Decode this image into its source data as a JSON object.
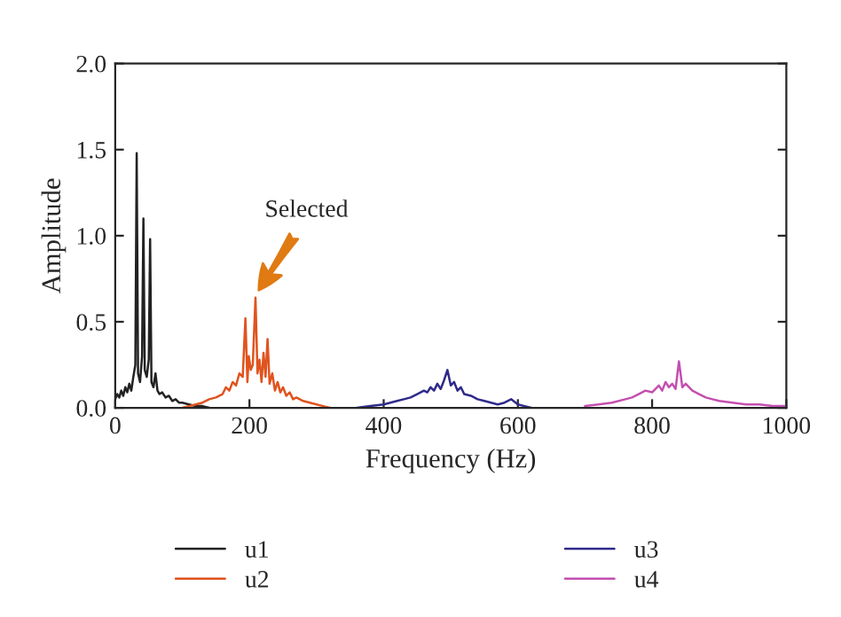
{
  "chart_data": {
    "type": "line",
    "xlabel": "Frequency (Hz)",
    "ylabel": "Amplitude",
    "xlim": [
      0,
      1000
    ],
    "xticks": [
      0,
      200,
      400,
      600,
      800,
      1000
    ],
    "ylim": [
      0,
      2.0
    ],
    "yticks": [
      {
        "value": 0,
        "label": "0.0"
      },
      {
        "value": 0.5,
        "label": "0.5"
      },
      {
        "value": 1.0,
        "label": "1.0"
      },
      {
        "value": 1.5,
        "label": "1.5"
      },
      {
        "value": 2.0,
        "label": "2.0"
      }
    ],
    "grid": false,
    "legend": "bottom",
    "annotations": [
      "Selected"
    ],
    "series": [
      {
        "name": "u1",
        "color": "#222222",
        "x": [
          0,
          3,
          6,
          9,
          12,
          15,
          18,
          21,
          24,
          27,
          30,
          32,
          34,
          37,
          40,
          42,
          44,
          47,
          50,
          52,
          54,
          57,
          60,
          63,
          66,
          70,
          75,
          80,
          85,
          90,
          95,
          100,
          110,
          120,
          130,
          140
        ],
        "values": [
          0.05,
          0.08,
          0.06,
          0.1,
          0.07,
          0.12,
          0.09,
          0.14,
          0.1,
          0.18,
          0.25,
          1.48,
          0.2,
          0.15,
          0.3,
          1.1,
          0.22,
          0.18,
          0.28,
          0.98,
          0.15,
          0.12,
          0.2,
          0.1,
          0.08,
          0.09,
          0.06,
          0.07,
          0.04,
          0.05,
          0.03,
          0.03,
          0.02,
          0.01,
          0.01,
          0.0
        ]
      },
      {
        "name": "u2",
        "color": "#e0531e",
        "x": [
          100,
          110,
          120,
          130,
          140,
          150,
          160,
          165,
          170,
          175,
          180,
          185,
          190,
          194,
          197,
          199,
          202,
          205,
          209,
          212,
          215,
          218,
          221,
          224,
          227,
          230,
          234,
          238,
          242,
          246,
          250,
          255,
          260,
          265,
          270,
          280,
          290,
          300,
          310,
          320
        ],
        "values": [
          0.0,
          0.01,
          0.02,
          0.03,
          0.05,
          0.06,
          0.08,
          0.12,
          0.1,
          0.15,
          0.13,
          0.2,
          0.18,
          0.52,
          0.15,
          0.3,
          0.22,
          0.25,
          0.64,
          0.2,
          0.28,
          0.15,
          0.32,
          0.18,
          0.4,
          0.14,
          0.2,
          0.1,
          0.15,
          0.09,
          0.12,
          0.07,
          0.09,
          0.05,
          0.06,
          0.04,
          0.03,
          0.02,
          0.01,
          0.0
        ]
      },
      {
        "name": "u3",
        "color": "#2e2a8a",
        "x": [
          360,
          380,
          400,
          410,
          420,
          430,
          440,
          450,
          460,
          465,
          470,
          475,
          480,
          485,
          490,
          495,
          500,
          505,
          510,
          515,
          520,
          530,
          540,
          550,
          560,
          570,
          580,
          590,
          600,
          610,
          620
        ],
        "values": [
          0.0,
          0.01,
          0.02,
          0.03,
          0.04,
          0.05,
          0.06,
          0.08,
          0.1,
          0.09,
          0.12,
          0.1,
          0.14,
          0.11,
          0.16,
          0.22,
          0.13,
          0.15,
          0.1,
          0.12,
          0.08,
          0.07,
          0.05,
          0.04,
          0.03,
          0.02,
          0.03,
          0.05,
          0.02,
          0.01,
          0.0
        ]
      },
      {
        "name": "u4",
        "color": "#c44fb0",
        "x": [
          700,
          720,
          740,
          760,
          770,
          780,
          790,
          800,
          810,
          815,
          820,
          825,
          830,
          835,
          840,
          845,
          850,
          860,
          870,
          880,
          890,
          900,
          920,
          940,
          960,
          980,
          1000
        ],
        "values": [
          0.01,
          0.02,
          0.03,
          0.05,
          0.06,
          0.08,
          0.1,
          0.09,
          0.13,
          0.1,
          0.15,
          0.12,
          0.14,
          0.11,
          0.27,
          0.12,
          0.14,
          0.1,
          0.08,
          0.06,
          0.05,
          0.04,
          0.03,
          0.02,
          0.02,
          0.01,
          0.01
        ]
      }
    ]
  }
}
